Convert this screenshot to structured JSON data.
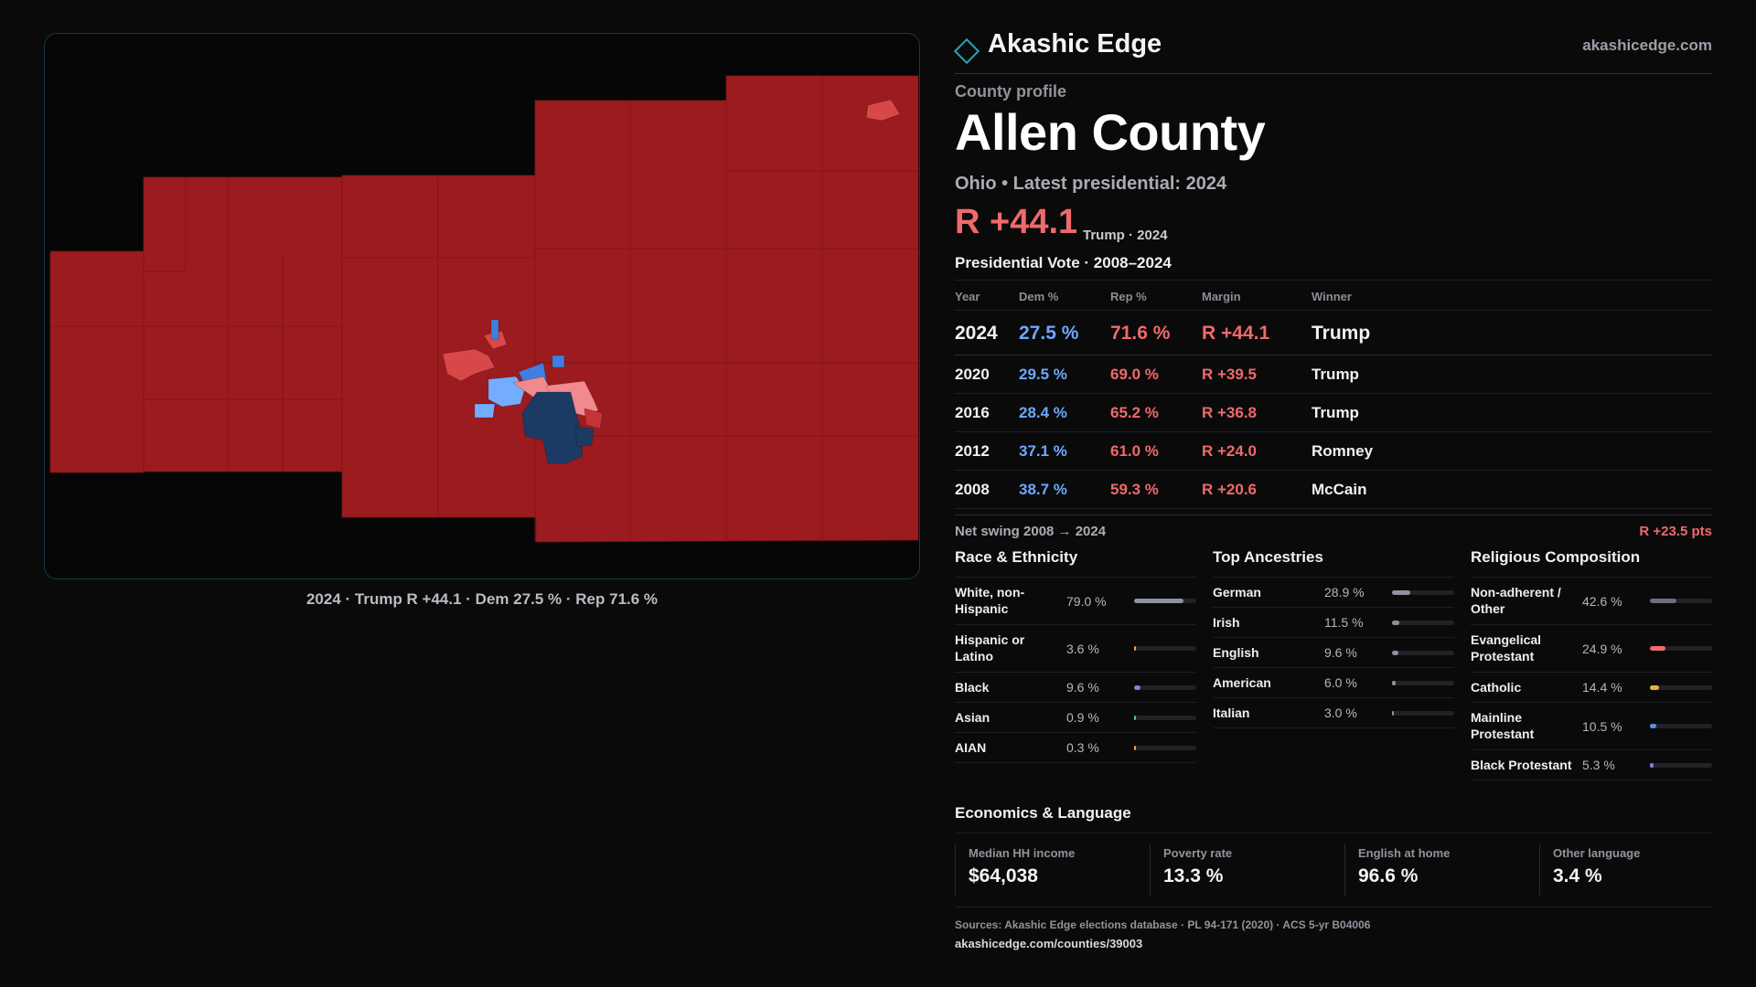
{
  "brand": {
    "name": "Akashic Edge",
    "url": "akashicedge.com"
  },
  "map": {
    "caption": "2024 · Trump R +44.1 · Dem 27.5 % · Rep 71.6 %",
    "colors": {
      "safe_r": "#9b1b1f",
      "lean_r": "#f08a8e",
      "mid_r": "#d94848",
      "lean_d": "#74adff",
      "mid_d": "#3f7fe3",
      "safe_d": "#1b3a64"
    }
  },
  "profile": {
    "eyebrow": "County profile",
    "county": "Allen County",
    "subtitle": "Ohio • Latest presidential: 2024",
    "headline_margin": "R +44.1",
    "headline_note": "Trump · 2024"
  },
  "vote_section_title": "Presidential Vote · 2008–2024",
  "vote_table": {
    "headers": {
      "year": "Year",
      "dem": "Dem %",
      "rep": "Rep %",
      "margin": "Margin",
      "winner": "Winner"
    },
    "rows": [
      {
        "year": "2024",
        "dem": "27.5 %",
        "rep": "71.6 %",
        "margin": "R +44.1",
        "winner": "Trump"
      },
      {
        "year": "2020",
        "dem": "29.5 %",
        "rep": "69.0 %",
        "margin": "R +39.5",
        "winner": "Trump"
      },
      {
        "year": "2016",
        "dem": "28.4 %",
        "rep": "65.2 %",
        "margin": "R +36.8",
        "winner": "Trump"
      },
      {
        "year": "2012",
        "dem": "37.1 %",
        "rep": "61.0 %",
        "margin": "R +24.0",
        "winner": "Romney"
      },
      {
        "year": "2008",
        "dem": "38.7 %",
        "rep": "59.3 %",
        "margin": "R +20.6",
        "winner": "McCain"
      }
    ]
  },
  "swing": {
    "label": "Net swing 2008 → 2024",
    "value": "R +23.5 pts"
  },
  "race": {
    "title": "Race & Ethnicity",
    "items": [
      {
        "label": "White, non-Hispanic",
        "value": "79.0 %",
        "pct": 79.0,
        "color": "#8d939d"
      },
      {
        "label": "Hispanic or Latino",
        "value": "3.6 %",
        "pct": 3.6,
        "color": "#e0a63a"
      },
      {
        "label": "Black",
        "value": "9.6 %",
        "pct": 9.6,
        "color": "#8c7be6"
      },
      {
        "label": "Asian",
        "value": "0.9 %",
        "pct": 0.9,
        "color": "#5bb8a8"
      },
      {
        "label": "AIAN",
        "value": "0.3 %",
        "pct": 0.3,
        "color": "#e0a63a"
      }
    ]
  },
  "ancestry": {
    "title": "Top Ancestries",
    "items": [
      {
        "label": "German",
        "value": "28.9 %",
        "pct": 28.9,
        "color": "#8d939d"
      },
      {
        "label": "Irish",
        "value": "11.5 %",
        "pct": 11.5,
        "color": "#8d939d"
      },
      {
        "label": "English",
        "value": "9.6 %",
        "pct": 9.6,
        "color": "#8d939d"
      },
      {
        "label": "American",
        "value": "6.0 %",
        "pct": 6.0,
        "color": "#8d939d"
      },
      {
        "label": "Italian",
        "value": "3.0 %",
        "pct": 3.0,
        "color": "#8d939d"
      }
    ]
  },
  "religion": {
    "title": "Religious Composition",
    "items": [
      {
        "label": "Non-adherent / Other",
        "value": "42.6 %",
        "pct": 42.6,
        "color": "#6b717b"
      },
      {
        "label": "Evangelical Protestant",
        "value": "24.9 %",
        "pct": 24.9,
        "color": "#ef6a6a"
      },
      {
        "label": "Catholic",
        "value": "14.4 %",
        "pct": 14.4,
        "color": "#e6b43a"
      },
      {
        "label": "Mainline Protestant",
        "value": "10.5 %",
        "pct": 10.5,
        "color": "#5b8ee6"
      },
      {
        "label": "Black Protestant",
        "value": "5.3 %",
        "pct": 5.3,
        "color": "#8c7be6"
      }
    ]
  },
  "economics": {
    "title": "Economics & Language",
    "cards": [
      {
        "label": "Median HH income",
        "value": "$64,038"
      },
      {
        "label": "Poverty rate",
        "value": "13.3 %"
      },
      {
        "label": "English at home",
        "value": "96.6 %"
      },
      {
        "label": "Other language",
        "value": "3.4 %"
      }
    ]
  },
  "sources": "Sources: Akashic Edge elections database · PL 94-171 (2020) · ACS 5-yr B04006",
  "source_link": "akashicedge.com/counties/39003"
}
